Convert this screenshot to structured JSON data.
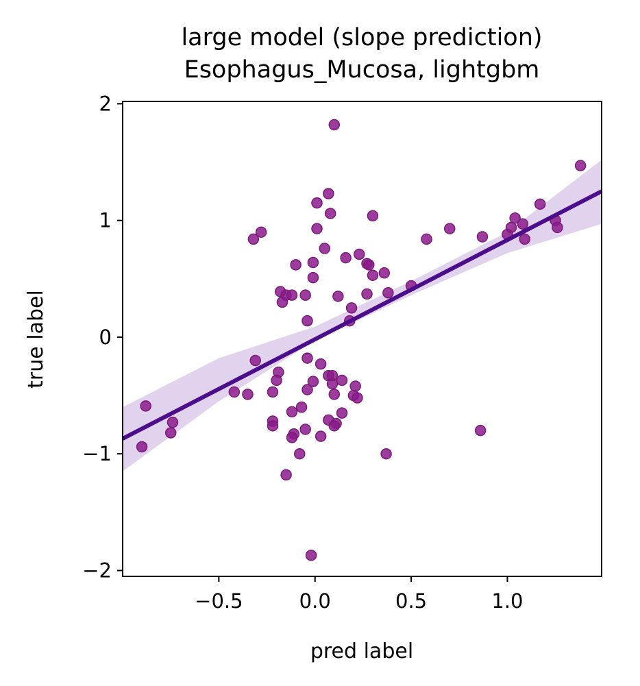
{
  "chart_data": {
    "type": "scatter",
    "title": "large model (slope prediction)",
    "subtitle": "Esophagus_Mucosa, lightgbm",
    "xlabel": "pred label",
    "ylabel": "true label",
    "xlim": [
      -1.0,
      1.49
    ],
    "ylim": [
      -2.05,
      2.02
    ],
    "xticks": [
      -0.5,
      0.0,
      0.5,
      1.0
    ],
    "xtick_labels": [
      "−0.5",
      "0.0",
      "0.5",
      "1.0"
    ],
    "yticks": [
      -2,
      -1,
      0,
      1,
      2
    ],
    "ytick_labels": [
      "−2",
      "−1",
      "0",
      "1",
      "2"
    ],
    "grid": false,
    "colors": {
      "points": "#8b1a8b",
      "points_edge": "#7a1a7a",
      "fit_line": "#4b0d8a",
      "confidence_band": "#d9c8ea"
    },
    "fit_line": {
      "x": [
        -1.0,
        1.49
      ],
      "y": [
        -0.87,
        1.25
      ]
    },
    "confidence_band": {
      "x": [
        -1.0,
        -0.5,
        0.0,
        0.5,
        1.0,
        1.49
      ],
      "lower": [
        -1.15,
        -0.55,
        -0.03,
        0.36,
        0.72,
        0.97
      ],
      "upper": [
        -0.6,
        -0.18,
        0.09,
        0.48,
        0.9,
        1.52
      ]
    },
    "series": [
      {
        "x": [
          0.1,
          1.38,
          0.07,
          0.08,
          0.01,
          0.3,
          0.01,
          -0.28,
          -0.32,
          0.58,
          0.7,
          0.87,
          1.0,
          1.02,
          1.04,
          1.08,
          1.09,
          1.17,
          1.25,
          1.26,
          0.05,
          0.16,
          0.23,
          0.27,
          0.28,
          0.3,
          -0.1,
          -0.01,
          -0.01,
          -0.18,
          -0.17,
          -0.15,
          -0.12,
          -0.05,
          0.12,
          0.36,
          0.38,
          0.5,
          0.27,
          0.19,
          0.18,
          -0.04,
          -0.31,
          -0.19,
          -0.2,
          -0.42,
          -0.35,
          -0.22,
          -0.04,
          -0.01,
          0.03,
          0.07,
          0.09,
          0.09,
          0.1,
          0.14,
          0.21,
          0.2,
          0.22,
          0.11,
          -0.04,
          -0.07,
          -0.12,
          -0.22,
          -0.22,
          -0.11,
          -0.12,
          0.07,
          0.1,
          0.14,
          -0.05,
          0.03,
          -0.08,
          -0.15,
          0.37,
          0.86,
          -0.88,
          -0.9,
          -0.74,
          -0.75,
          -0.02
        ],
        "y": [
          1.82,
          1.47,
          1.23,
          1.06,
          1.15,
          1.04,
          0.93,
          0.9,
          0.84,
          0.84,
          0.93,
          0.86,
          0.88,
          0.94,
          1.02,
          0.97,
          0.84,
          1.14,
          1.0,
          0.94,
          0.76,
          0.68,
          0.71,
          0.63,
          0.62,
          0.53,
          0.62,
          0.64,
          0.51,
          0.39,
          0.3,
          0.36,
          0.36,
          0.36,
          0.35,
          0.55,
          0.38,
          0.44,
          0.37,
          0.25,
          0.14,
          0.14,
          -0.2,
          -0.3,
          -0.37,
          -0.47,
          -0.49,
          -0.47,
          -0.18,
          -0.38,
          -0.23,
          -0.33,
          -0.33,
          -0.4,
          -0.49,
          -0.37,
          -0.42,
          -0.5,
          -0.52,
          -0.74,
          -0.45,
          -0.6,
          -0.64,
          -0.72,
          -0.76,
          -0.83,
          -0.86,
          -0.71,
          -0.76,
          -0.65,
          -0.79,
          -0.85,
          -1.0,
          -1.18,
          -1.0,
          -0.8,
          -0.59,
          -0.94,
          -0.73,
          -0.82,
          -1.87
        ]
      }
    ]
  }
}
